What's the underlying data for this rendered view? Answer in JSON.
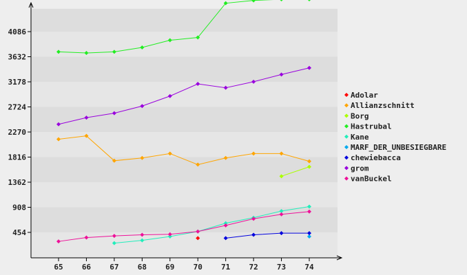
{
  "chart_data": {
    "type": "line",
    "x": [
      65,
      66,
      67,
      68,
      69,
      70,
      71,
      72,
      73,
      74
    ],
    "y_ticks": [
      454,
      908,
      1362,
      1816,
      2270,
      2724,
      3178,
      3632,
      4086
    ],
    "xlim": [
      64,
      75
    ],
    "ylim": [
      0,
      4500
    ],
    "grid": "horizontal bands",
    "legend_position": "right",
    "series": [
      {
        "name": "Adolar",
        "color": "#ff0000",
        "values": [
          null,
          null,
          null,
          null,
          null,
          350,
          null,
          null,
          null,
          null
        ]
      },
      {
        "name": "Allianzschnitt",
        "color": "#ffa500",
        "values": [
          2140,
          2200,
          1750,
          1800,
          1880,
          1680,
          1800,
          1880,
          1880,
          1740
        ]
      },
      {
        "name": "Borg",
        "color": "#aaff00",
        "values": [
          null,
          null,
          null,
          null,
          null,
          null,
          null,
          null,
          1470,
          1640
        ]
      },
      {
        "name": "Hastrubal",
        "color": "#22ee22",
        "values": [
          3720,
          3700,
          3720,
          3800,
          3930,
          3980,
          4600,
          4650,
          4670,
          4670
        ]
      },
      {
        "name": "Kane",
        "color": "#22eebb",
        "values": [
          null,
          null,
          260,
          310,
          380,
          470,
          620,
          720,
          840,
          920
        ]
      },
      {
        "name": "MARF_DER_UNBESIEGBARE",
        "color": "#00aaee",
        "values": [
          null,
          null,
          null,
          null,
          null,
          null,
          null,
          null,
          null,
          380
        ]
      },
      {
        "name": "chewiebacca",
        "color": "#0000dd",
        "values": [
          null,
          null,
          null,
          null,
          null,
          null,
          350,
          410,
          440,
          440
        ]
      },
      {
        "name": "grom",
        "color": "#9900dd",
        "values": [
          2410,
          2530,
          2610,
          2740,
          2920,
          3140,
          3070,
          3180,
          3310,
          3430
        ]
      },
      {
        "name": "vanBuckel",
        "color": "#ee1199",
        "values": [
          290,
          360,
          390,
          410,
          420,
          470,
          580,
          700,
          780,
          830
        ]
      }
    ]
  }
}
